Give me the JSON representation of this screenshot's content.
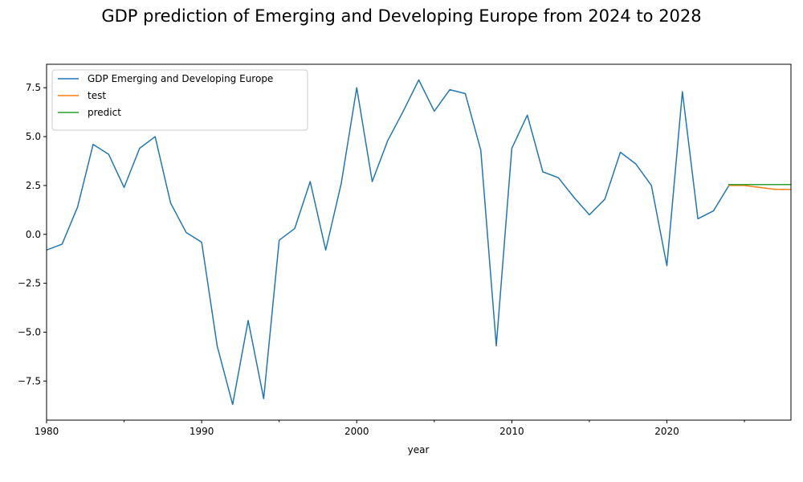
{
  "chart_data": {
    "type": "line",
    "title": "GDP prediction of Emerging and Developing Europe from 2024 to 2028",
    "xlabel": "year",
    "ylabel": "",
    "xlim": [
      1980,
      2028
    ],
    "ylim": [
      -9.5,
      8.7
    ],
    "x_major_ticks": [
      1980,
      1990,
      2000,
      2010,
      2020
    ],
    "x_minor_ticks": [
      1985,
      1995,
      2005,
      2015,
      2025
    ],
    "y_ticks": [
      -7.5,
      -5.0,
      -2.5,
      0.0,
      2.5,
      5.0,
      7.5
    ],
    "y_tick_labels": [
      "−7.5",
      "−5.0",
      "−2.5",
      "0.0",
      "2.5",
      "5.0",
      "7.5"
    ],
    "grid": false,
    "legend_position": "top-left",
    "series": [
      {
        "name": "GDP Emerging and Developing Europe",
        "color": "#1f77b4",
        "x": [
          1980,
          1981,
          1982,
          1983,
          1984,
          1985,
          1986,
          1987,
          1988,
          1989,
          1990,
          1991,
          1992,
          1993,
          1994,
          1995,
          1996,
          1997,
          1998,
          1999,
          2000,
          2001,
          2002,
          2003,
          2004,
          2005,
          2006,
          2007,
          2008,
          2009,
          2010,
          2011,
          2012,
          2013,
          2014,
          2015,
          2016,
          2017,
          2018,
          2019,
          2020,
          2021,
          2022,
          2023,
          2024
        ],
        "values": [
          -0.8,
          -0.5,
          1.4,
          4.6,
          4.1,
          2.4,
          4.4,
          5.0,
          1.6,
          0.1,
          -0.4,
          -5.7,
          -8.7,
          -4.4,
          -8.4,
          -0.3,
          0.3,
          2.7,
          -0.8,
          2.6,
          7.5,
          2.7,
          4.8,
          6.3,
          7.9,
          6.3,
          7.4,
          7.2,
          4.3,
          -5.7,
          4.4,
          6.1,
          3.2,
          2.9,
          1.9,
          1.0,
          1.8,
          4.2,
          3.6,
          2.5,
          -1.6,
          7.3,
          0.8,
          1.2,
          2.5
        ]
      },
      {
        "name": "test",
        "color": "#ff7f0e",
        "x": [
          2024,
          2025,
          2026,
          2027,
          2028
        ],
        "values": [
          2.5,
          2.5,
          2.4,
          2.3,
          2.3
        ]
      },
      {
        "name": "predict",
        "color": "#2ca02c",
        "x": [
          2024,
          2025,
          2026,
          2027,
          2028
        ],
        "values": [
          2.55,
          2.55,
          2.55,
          2.55,
          2.55
        ]
      }
    ]
  }
}
